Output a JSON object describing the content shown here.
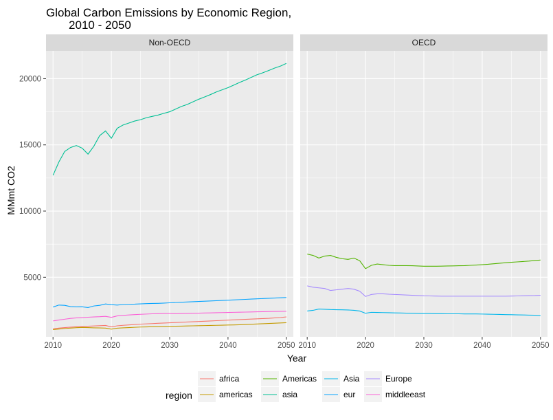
{
  "chart_data": {
    "type": "line",
    "title": "Global Carbon Emissions by Economic Region,\n       2010 - 2050",
    "xlabel": "Year",
    "ylabel": "MMmt CO2",
    "x_ticks": [
      2010,
      2020,
      2030,
      2040,
      2050
    ],
    "y_ticks": [
      5000,
      10000,
      15000,
      20000
    ],
    "xlim": [
      2008.8,
      2051.2
    ],
    "ylim": [
      500,
      22100
    ],
    "grid": true,
    "legend": {
      "title": "region",
      "position": "bottom",
      "entries": [
        {
          "name": "africa",
          "color": "#F8766D"
        },
        {
          "name": "americas",
          "color": "#C49A00"
        },
        {
          "name": "Americas",
          "color": "#53B400"
        },
        {
          "name": "asia",
          "color": "#00C094"
        },
        {
          "name": "Asia",
          "color": "#00B6EB"
        },
        {
          "name": "eur",
          "color": "#06A4FF"
        },
        {
          "name": "Europe",
          "color": "#A58AFF"
        },
        {
          "name": "middleeast",
          "color": "#FB61D7"
        }
      ]
    },
    "facets": [
      {
        "label": "Non-OECD",
        "series": [
          {
            "name": "asia",
            "color": "#00C094",
            "x": [
              2010,
              2011,
              2012,
              2013,
              2014,
              2015,
              2016,
              2017,
              2018,
              2019,
              2020,
              2021,
              2022,
              2023,
              2024,
              2025,
              2026,
              2027,
              2028,
              2029,
              2030,
              2031,
              2032,
              2033,
              2034,
              2035,
              2036,
              2037,
              2038,
              2039,
              2040,
              2041,
              2042,
              2043,
              2044,
              2045,
              2046,
              2047,
              2048,
              2049,
              2050
            ],
            "y": [
              12700,
              13700,
              14500,
              14800,
              14950,
              14750,
              14300,
              14900,
              15700,
              16050,
              15500,
              16250,
              16500,
              16650,
              16800,
              16900,
              17050,
              17150,
              17250,
              17380,
              17500,
              17700,
              17900,
              18050,
              18250,
              18450,
              18620,
              18800,
              19000,
              19160,
              19320,
              19520,
              19720,
              19900,
              20100,
              20300,
              20450,
              20620,
              20800,
              20950,
              21150
            ]
          },
          {
            "name": "eur",
            "color": "#06A4FF",
            "x": [
              2010,
              2011,
              2012,
              2013,
              2014,
              2015,
              2016,
              2017,
              2018,
              2019,
              2020,
              2021,
              2022,
              2023,
              2024,
              2025,
              2026,
              2027,
              2028,
              2029,
              2030,
              2031,
              2032,
              2033,
              2034,
              2035,
              2036,
              2037,
              2038,
              2039,
              2040,
              2041,
              2042,
              2043,
              2044,
              2045,
              2046,
              2047,
              2048,
              2049,
              2050
            ],
            "y": [
              2750,
              2900,
              2880,
              2780,
              2760,
              2770,
              2710,
              2830,
              2880,
              2980,
              2930,
              2900,
              2940,
              2960,
              2970,
              2990,
              3010,
              3020,
              3030,
              3050,
              3070,
              3090,
              3110,
              3130,
              3150,
              3170,
              3190,
              3210,
              3230,
              3250,
              3270,
              3290,
              3310,
              3330,
              3350,
              3370,
              3390,
              3410,
              3430,
              3450,
              3470
            ]
          },
          {
            "name": "middleeast",
            "color": "#FB61D7",
            "x": [
              2010,
              2011,
              2012,
              2013,
              2014,
              2015,
              2016,
              2017,
              2018,
              2019,
              2020,
              2021,
              2022,
              2023,
              2024,
              2025,
              2026,
              2027,
              2028,
              2029,
              2030,
              2031,
              2032,
              2033,
              2034,
              2035,
              2036,
              2037,
              2038,
              2039,
              2040,
              2041,
              2042,
              2043,
              2044,
              2045,
              2046,
              2047,
              2048,
              2049,
              2050
            ],
            "y": [
              1700,
              1770,
              1830,
              1890,
              1930,
              1950,
              1980,
              2000,
              2020,
              2050,
              1970,
              2080,
              2120,
              2150,
              2180,
              2200,
              2220,
              2240,
              2250,
              2260,
              2260,
              2250,
              2260,
              2270,
              2280,
              2290,
              2300,
              2310,
              2320,
              2330,
              2340,
              2350,
              2360,
              2370,
              2380,
              2390,
              2400,
              2410,
              2420,
              2425,
              2430
            ]
          },
          {
            "name": "africa",
            "color": "#F8766D",
            "x": [
              2010,
              2011,
              2012,
              2013,
              2014,
              2015,
              2016,
              2017,
              2018,
              2019,
              2020,
              2021,
              2022,
              2023,
              2024,
              2025,
              2026,
              2027,
              2028,
              2029,
              2030,
              2031,
              2032,
              2033,
              2034,
              2035,
              2036,
              2037,
              2038,
              2039,
              2040,
              2041,
              2042,
              2043,
              2044,
              2045,
              2046,
              2047,
              2048,
              2049,
              2050
            ],
            "y": [
              1100,
              1160,
              1200,
              1230,
              1260,
              1290,
              1300,
              1320,
              1340,
              1360,
              1250,
              1330,
              1370,
              1400,
              1430,
              1460,
              1480,
              1500,
              1520,
              1540,
              1560,
              1580,
              1600,
              1620,
              1640,
              1660,
              1680,
              1700,
              1720,
              1740,
              1760,
              1780,
              1800,
              1820,
              1840,
              1860,
              1880,
              1900,
              1930,
              1960,
              2000
            ]
          },
          {
            "name": "americas",
            "color": "#C49A00",
            "x": [
              2010,
              2011,
              2012,
              2013,
              2014,
              2015,
              2016,
              2017,
              2018,
              2019,
              2020,
              2021,
              2022,
              2023,
              2024,
              2025,
              2026,
              2027,
              2028,
              2029,
              2030,
              2031,
              2032,
              2033,
              2034,
              2035,
              2036,
              2037,
              2038,
              2039,
              2040,
              2041,
              2042,
              2043,
              2044,
              2045,
              2046,
              2047,
              2048,
              2049,
              2050
            ],
            "y": [
              1050,
              1090,
              1130,
              1160,
              1190,
              1210,
              1200,
              1180,
              1170,
              1160,
              1080,
              1150,
              1180,
              1200,
              1220,
              1240,
              1250,
              1260,
              1270,
              1280,
              1290,
              1300,
              1310,
              1320,
              1330,
              1340,
              1350,
              1360,
              1370,
              1380,
              1390,
              1400,
              1410,
              1430,
              1450,
              1470,
              1490,
              1510,
              1530,
              1550,
              1570
            ]
          }
        ]
      },
      {
        "label": "OECD",
        "series": [
          {
            "name": "Americas",
            "color": "#53B400",
            "x": [
              2010,
              2011,
              2012,
              2013,
              2014,
              2015,
              2016,
              2017,
              2018,
              2019,
              2020,
              2021,
              2022,
              2023,
              2024,
              2025,
              2026,
              2027,
              2028,
              2029,
              2030,
              2031,
              2032,
              2033,
              2034,
              2035,
              2036,
              2037,
              2038,
              2039,
              2040,
              2041,
              2042,
              2043,
              2044,
              2045,
              2046,
              2047,
              2048,
              2049,
              2050
            ],
            "y": [
              6750,
              6650,
              6450,
              6600,
              6650,
              6500,
              6400,
              6350,
              6450,
              6250,
              5650,
              5900,
              6000,
              5950,
              5900,
              5880,
              5880,
              5880,
              5870,
              5850,
              5830,
              5830,
              5830,
              5840,
              5850,
              5860,
              5870,
              5880,
              5900,
              5920,
              5950,
              5980,
              6020,
              6060,
              6100,
              6130,
              6160,
              6190,
              6220,
              6260,
              6300
            ]
          },
          {
            "name": "Europe",
            "color": "#A58AFF",
            "x": [
              2010,
              2011,
              2012,
              2013,
              2014,
              2015,
              2016,
              2017,
              2018,
              2019,
              2020,
              2021,
              2022,
              2023,
              2024,
              2025,
              2026,
              2027,
              2028,
              2029,
              2030,
              2031,
              2032,
              2033,
              2034,
              2035,
              2036,
              2037,
              2038,
              2039,
              2040,
              2041,
              2042,
              2043,
              2044,
              2045,
              2046,
              2047,
              2048,
              2049,
              2050
            ],
            "y": [
              4350,
              4250,
              4200,
              4150,
              4000,
              4050,
              4100,
              4150,
              4100,
              3950,
              3550,
              3700,
              3750,
              3750,
              3720,
              3700,
              3680,
              3660,
              3640,
              3620,
              3600,
              3590,
              3580,
              3570,
              3570,
              3570,
              3570,
              3570,
              3570,
              3570,
              3570,
              3570,
              3570,
              3570,
              3570,
              3580,
              3590,
              3600,
              3610,
              3620,
              3640
            ]
          },
          {
            "name": "Asia",
            "color": "#00B6EB",
            "x": [
              2010,
              2011,
              2012,
              2013,
              2014,
              2015,
              2016,
              2017,
              2018,
              2019,
              2020,
              2021,
              2022,
              2023,
              2024,
              2025,
              2026,
              2027,
              2028,
              2029,
              2030,
              2031,
              2032,
              2033,
              2034,
              2035,
              2036,
              2037,
              2038,
              2039,
              2040,
              2041,
              2042,
              2043,
              2044,
              2045,
              2046,
              2047,
              2048,
              2049,
              2050
            ],
            "y": [
              2450,
              2500,
              2600,
              2580,
              2560,
              2550,
              2540,
              2530,
              2500,
              2450,
              2280,
              2350,
              2340,
              2330,
              2320,
              2310,
              2300,
              2290,
              2280,
              2270,
              2260,
              2260,
              2250,
              2250,
              2240,
              2240,
              2240,
              2230,
              2230,
              2230,
              2220,
              2210,
              2200,
              2190,
              2180,
              2170,
              2160,
              2150,
              2140,
              2130,
              2100
            ]
          }
        ]
      }
    ]
  }
}
